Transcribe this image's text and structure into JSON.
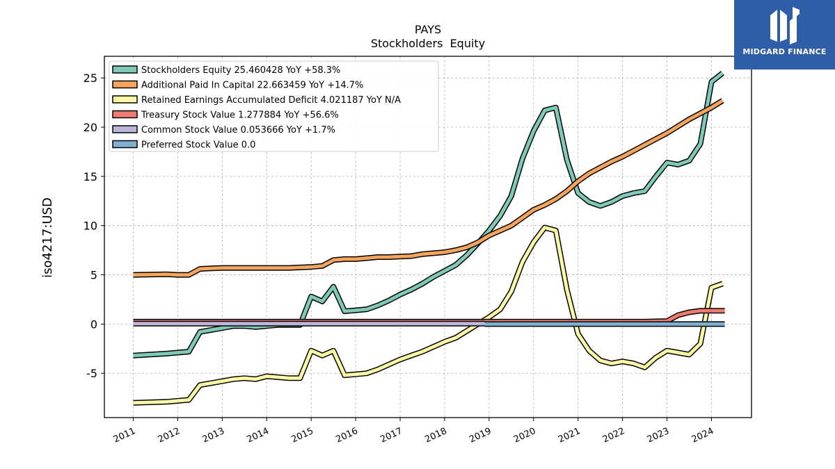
{
  "brand": {
    "name": "MIDGARD FINANCE",
    "bg_color": "#2f5da8"
  },
  "chart_data": {
    "type": "line",
    "title": "PAYS",
    "subtitle": "Stockholders  Equity",
    "ylabel": "iso4217:USD",
    "xlabel": "",
    "ylim": [
      -9.5,
      27.2
    ],
    "xlim": [
      2010.35,
      2024.9
    ],
    "yticks": [
      -5,
      0,
      5,
      10,
      15,
      20,
      25
    ],
    "xticks": [
      "2011",
      "2012",
      "2013",
      "2014",
      "2015",
      "2016",
      "2017",
      "2018",
      "2019",
      "2020",
      "2021",
      "2022",
      "2023",
      "2024"
    ],
    "grid": true,
    "legend_position": "top-left",
    "series": [
      {
        "name": "Stockholders Equity",
        "legend": "Stockholders Equity  25.460428 YoY +58.3%",
        "color": "#7fc9b8",
        "x": [
          2011.0,
          2011.75,
          2012.0,
          2012.25,
          2012.5,
          2012.75,
          2013.0,
          2013.25,
          2013.5,
          2013.75,
          2014.0,
          2014.25,
          2014.5,
          2014.75,
          2015.0,
          2015.25,
          2015.5,
          2015.75,
          2016.0,
          2016.25,
          2016.5,
          2016.75,
          2017.0,
          2017.25,
          2017.5,
          2017.75,
          2018.0,
          2018.25,
          2018.5,
          2018.75,
          2019.0,
          2019.25,
          2019.5,
          2019.75,
          2020.0,
          2020.25,
          2020.5,
          2020.75,
          2021.0,
          2021.25,
          2021.5,
          2021.75,
          2022.0,
          2022.25,
          2022.5,
          2022.75,
          2023.0,
          2023.25,
          2023.5,
          2023.75,
          2024.0,
          2024.25
        ],
        "y": [
          -3.2,
          -3.0,
          -2.9,
          -2.8,
          -0.8,
          -0.6,
          -0.4,
          -0.2,
          -0.2,
          -0.3,
          -0.2,
          -0.1,
          -0.1,
          -0.1,
          2.8,
          2.3,
          3.8,
          1.3,
          1.4,
          1.5,
          1.9,
          2.4,
          3.0,
          3.5,
          4.1,
          4.8,
          5.4,
          6.0,
          7.0,
          8.2,
          9.5,
          11.0,
          13.0,
          16.8,
          19.6,
          21.7,
          22.0,
          16.7,
          13.3,
          12.4,
          12.0,
          12.4,
          13.0,
          13.3,
          13.5,
          15.0,
          16.4,
          16.2,
          16.6,
          18.3,
          24.6,
          25.5
        ]
      },
      {
        "name": "Additional Paid In Capital",
        "legend": "Additional Paid In Capital  22.663459 YoY +14.7%",
        "color": "#f5a45c",
        "x": [
          2011.0,
          2011.75,
          2012.0,
          2012.25,
          2012.5,
          2012.75,
          2013.0,
          2013.25,
          2013.5,
          2013.75,
          2014.0,
          2014.25,
          2014.5,
          2014.75,
          2015.0,
          2015.25,
          2015.5,
          2015.75,
          2016.0,
          2016.25,
          2016.5,
          2016.75,
          2017.0,
          2017.25,
          2017.5,
          2017.75,
          2018.0,
          2018.25,
          2018.5,
          2018.75,
          2019.0,
          2019.25,
          2019.5,
          2019.75,
          2020.0,
          2020.25,
          2020.5,
          2020.75,
          2021.0,
          2021.25,
          2021.5,
          2021.75,
          2022.0,
          2022.25,
          2022.5,
          2022.75,
          2023.0,
          2023.25,
          2023.5,
          2023.75,
          2024.0,
          2024.25
        ],
        "y": [
          5.0,
          5.05,
          5.0,
          5.0,
          5.6,
          5.65,
          5.7,
          5.7,
          5.7,
          5.7,
          5.7,
          5.7,
          5.7,
          5.75,
          5.8,
          5.9,
          6.5,
          6.6,
          6.6,
          6.7,
          6.8,
          6.8,
          6.85,
          6.9,
          7.1,
          7.2,
          7.3,
          7.5,
          7.8,
          8.3,
          9.0,
          9.5,
          10.0,
          10.8,
          11.6,
          12.1,
          12.7,
          13.5,
          14.5,
          15.3,
          15.9,
          16.5,
          17.0,
          17.6,
          18.2,
          18.8,
          19.4,
          20.1,
          20.8,
          21.4,
          22.0,
          22.7
        ]
      },
      {
        "name": "Retained Earnings Accumulated Deficit",
        "legend": "Retained Earnings Accumulated Deficit  4.021187 YoY N/A",
        "color": "#fbf8a6",
        "x": [
          2011.0,
          2011.75,
          2012.0,
          2012.25,
          2012.5,
          2012.75,
          2013.0,
          2013.25,
          2013.5,
          2013.75,
          2014.0,
          2014.25,
          2014.5,
          2014.75,
          2015.0,
          2015.25,
          2015.5,
          2015.75,
          2016.0,
          2016.25,
          2016.5,
          2016.75,
          2017.0,
          2017.25,
          2017.5,
          2017.75,
          2018.0,
          2018.25,
          2018.5,
          2018.75,
          2019.0,
          2019.25,
          2019.5,
          2019.75,
          2020.0,
          2020.25,
          2020.5,
          2020.75,
          2021.0,
          2021.25,
          2021.5,
          2021.75,
          2022.0,
          2022.25,
          2022.5,
          2022.75,
          2023.0,
          2023.25,
          2023.5,
          2023.75,
          2024.0,
          2024.25
        ],
        "y": [
          -8.0,
          -7.9,
          -7.8,
          -7.7,
          -6.2,
          -6.0,
          -5.8,
          -5.6,
          -5.5,
          -5.6,
          -5.3,
          -5.4,
          -5.5,
          -5.5,
          -2.7,
          -3.2,
          -2.7,
          -5.2,
          -5.1,
          -5.0,
          -4.6,
          -4.1,
          -3.6,
          -3.2,
          -2.8,
          -2.3,
          -1.8,
          -1.4,
          -0.7,
          0.0,
          0.7,
          1.5,
          3.3,
          6.3,
          8.3,
          9.8,
          9.5,
          3.5,
          -1.0,
          -2.7,
          -3.7,
          -4.0,
          -3.8,
          -4.0,
          -4.4,
          -3.4,
          -2.7,
          -2.9,
          -3.1,
          -2.0,
          3.7,
          4.1
        ]
      },
      {
        "name": "Treasury Stock Value",
        "legend": "Treasury Stock Value  1.277884 YoY +56.6%",
        "color": "#f07a6e",
        "x": [
          2011.0,
          2022.5,
          2023.0,
          2023.25,
          2023.5,
          2023.75,
          2024.0,
          2024.3
        ],
        "y": [
          0.25,
          0.25,
          0.3,
          0.9,
          1.2,
          1.35,
          1.35,
          1.35
        ]
      },
      {
        "name": "Common Stock Value",
        "legend": "Common Stock Value  0.053666 YoY +1.7%",
        "color": "#bcb7d8",
        "x": [
          2011.0,
          2018.9
        ],
        "y": [
          0.05,
          0.05
        ]
      },
      {
        "name": "Preferred Stock Value",
        "legend": "Preferred Stock Value  0.0",
        "color": "#7fb0d2",
        "x": [
          2018.9,
          2024.3
        ],
        "y": [
          0.0,
          0.0
        ]
      }
    ]
  }
}
